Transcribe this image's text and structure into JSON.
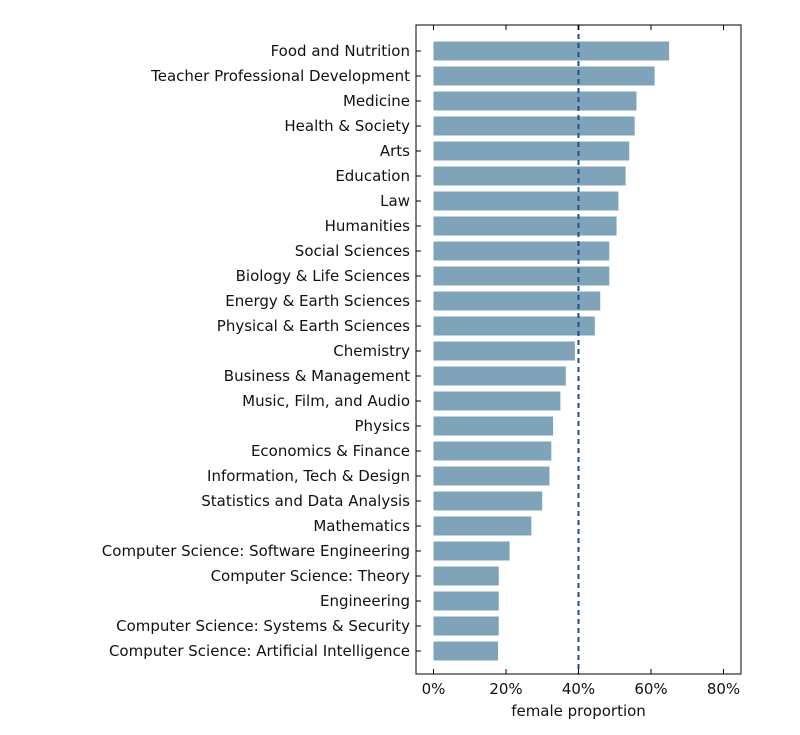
{
  "chart_data": {
    "type": "bar",
    "orientation": "horizontal",
    "categories": [
      "Food and Nutrition",
      "Teacher Professional Development",
      "Medicine",
      "Health & Society",
      "Arts",
      "Education",
      "Law",
      "Humanities",
      "Social Sciences",
      "Biology & Life Sciences",
      "Energy & Earth Sciences",
      "Physical & Earth Sciences",
      "Chemistry",
      "Business & Management",
      "Music, Film, and Audio",
      "Physics",
      "Economics & Finance",
      "Information, Tech & Design",
      "Statistics and Data Analysis",
      "Mathematics",
      "Computer Science: Software Engineering",
      "Computer Science: Theory",
      "Engineering",
      "Computer Science: Systems & Security",
      "Computer Science: Artificial Intelligence"
    ],
    "values": [
      0.65,
      0.61,
      0.56,
      0.555,
      0.54,
      0.53,
      0.51,
      0.505,
      0.485,
      0.485,
      0.46,
      0.445,
      0.39,
      0.365,
      0.35,
      0.33,
      0.325,
      0.32,
      0.3,
      0.27,
      0.21,
      0.18,
      0.18,
      0.18,
      0.178
    ],
    "reference_line": 0.4,
    "xlim": [
      -0.05,
      0.85
    ],
    "xticks": [
      0,
      0.2,
      0.4,
      0.6,
      0.8
    ],
    "xtick_labels": [
      "0%",
      "20%",
      "40%",
      "60%",
      "80%"
    ],
    "xlabel": "female proportion",
    "ylabel": "",
    "title": "",
    "grid": false,
    "colors": {
      "bar": "#7fa3b9",
      "reference_line": "#1f4e8c",
      "axis": "#000000"
    }
  }
}
